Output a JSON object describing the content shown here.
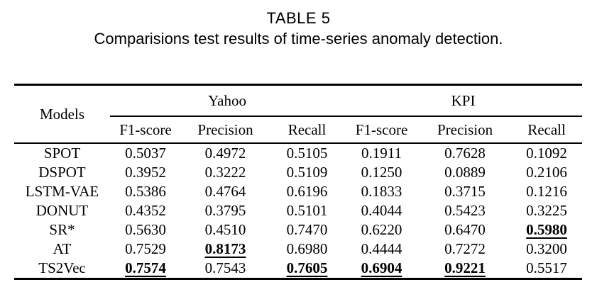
{
  "title": "TABLE 5",
  "subtitle": "Comparisions test results of time-series anomaly detection.",
  "colors": {
    "text": "#000000",
    "background": "#ffffff",
    "rule": "#000000"
  },
  "chart_data": {
    "type": "table",
    "title": "TABLE 5",
    "subtitle": "Comparisions test results of time-series anomaly detection.",
    "corner_header": "Models",
    "groups": [
      {
        "label": "Yahoo",
        "columns": [
          "F1-score",
          "Precision",
          "Recall"
        ]
      },
      {
        "label": "KPI",
        "columns": [
          "F1-score",
          "Precision",
          "Recall"
        ]
      }
    ],
    "rows": [
      {
        "model": "SPOT",
        "values": [
          "0.5037",
          "0.4972",
          "0.5105",
          "0.1911",
          "0.7628",
          "0.1092"
        ],
        "highlight": []
      },
      {
        "model": "DSPOT",
        "values": [
          "0.3952",
          "0.3222",
          "0.5109",
          "0.1250",
          "0.0889",
          "0.2106"
        ],
        "highlight": []
      },
      {
        "model": "LSTM-VAE",
        "values": [
          "0.5386",
          "0.4764",
          "0.6196",
          "0.1833",
          "0.3715",
          "0.1216"
        ],
        "highlight": []
      },
      {
        "model": "DONUT",
        "values": [
          "0.4352",
          "0.3795",
          "0.5101",
          "0.4044",
          "0.5423",
          "0.3225"
        ],
        "highlight": []
      },
      {
        "model": "SR*",
        "values": [
          "0.5630",
          "0.4510",
          "0.7470",
          "0.6220",
          "0.6470",
          "0.5980"
        ],
        "highlight": [
          5
        ]
      },
      {
        "model": "AT",
        "values": [
          "0.7529",
          "0.8173",
          "0.6980",
          "0.4444",
          "0.7272",
          "0.3200"
        ],
        "highlight": [
          1
        ]
      },
      {
        "model": "TS2Vec",
        "values": [
          "0.7574",
          "0.7543",
          "0.7605",
          "0.6904",
          "0.9221",
          "0.5517"
        ],
        "highlight": [
          0,
          2,
          3,
          4
        ]
      }
    ],
    "highlight_style": "bold underlined"
  }
}
